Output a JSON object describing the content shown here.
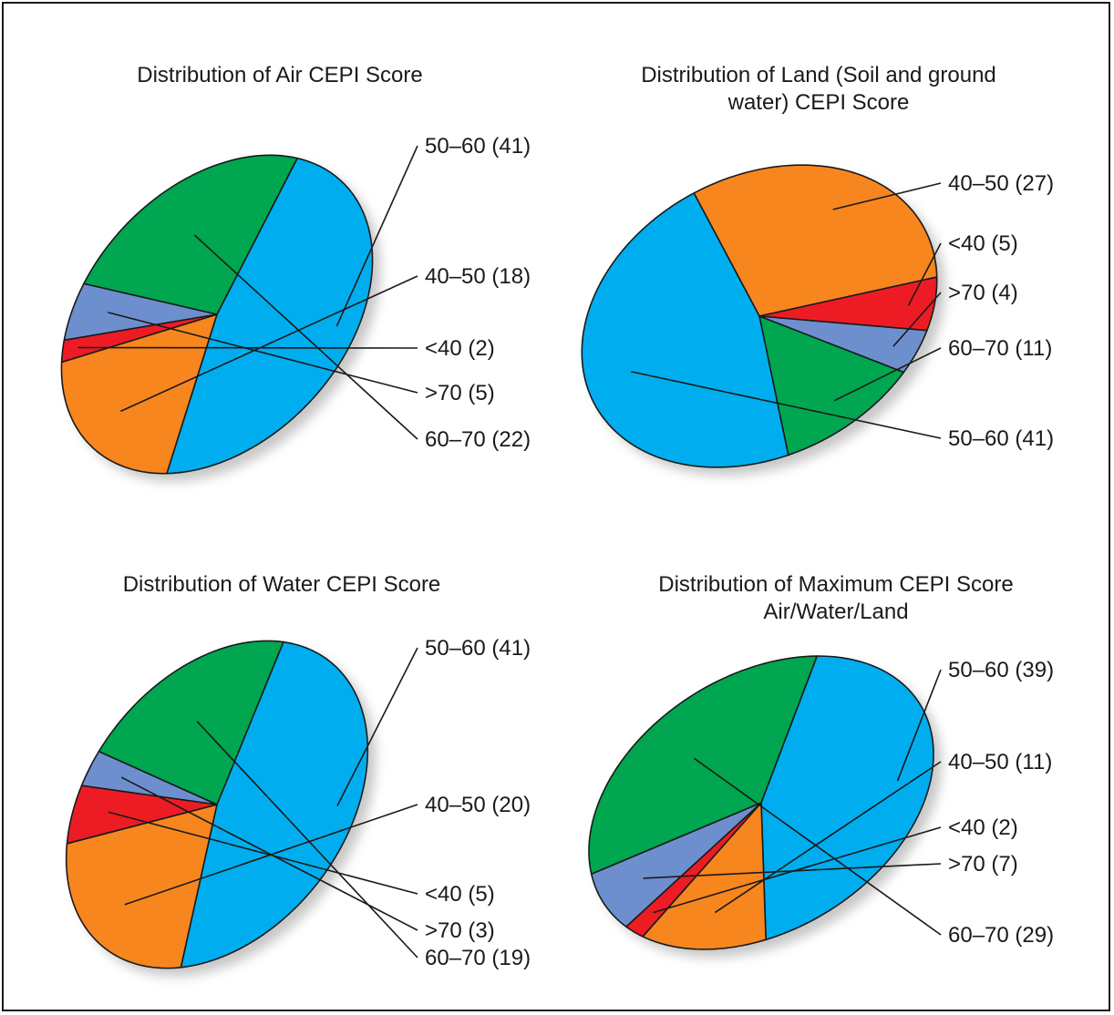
{
  "colors": {
    "50-60": "#00aeef",
    "40-50": "#f7861f",
    "<40": "#ed1c24",
    ">70": "#6e8fce",
    "60-70": "#00a650",
    "outline": "#1a1a1a",
    "shadow": "#9a9a9a"
  },
  "chart_data": [
    {
      "type": "pie",
      "title_lines": [
        "Distribution of Air CEPI Score"
      ],
      "slices": [
        {
          "key": "50-60",
          "label": "50–60 (41)",
          "value": 41
        },
        {
          "key": "40-50",
          "label": "40–50 (18)",
          "value": 18
        },
        {
          "key": "<40",
          "label": "<40 (2)",
          "value": 2
        },
        {
          "key": ">70",
          "label": ">70 (5)",
          "value": 5
        },
        {
          "key": "60-70",
          "label": "60–70 (22)",
          "value": 22
        }
      ]
    },
    {
      "type": "pie",
      "title_lines": [
        "Distribution of Land (Soil and ground",
        "water) CEPI Score"
      ],
      "slices": [
        {
          "key": "40-50",
          "label": "40–50 (27)",
          "value": 27
        },
        {
          "key": "<40",
          "label": "<40 (5)",
          "value": 5
        },
        {
          "key": ">70",
          "label": ">70 (4)",
          "value": 4
        },
        {
          "key": "60-70",
          "label": "60–70 (11)",
          "value": 11
        },
        {
          "key": "50-60",
          "label": "50–60 (41)",
          "value": 41
        }
      ]
    },
    {
      "type": "pie",
      "title_lines": [
        "Distribution of Water CEPI Score"
      ],
      "slices": [
        {
          "key": "50-60",
          "label": "50–60 (41)",
          "value": 41
        },
        {
          "key": "40-50",
          "label": "40–50 (20)",
          "value": 20
        },
        {
          "key": "<40",
          "label": "<40 (5)",
          "value": 5
        },
        {
          "key": ">70",
          "label": ">70 (3)",
          "value": 3
        },
        {
          "key": "60-70",
          "label": "60–70 (19)",
          "value": 19
        }
      ]
    },
    {
      "type": "pie",
      "title_lines": [
        "Distribution of Maximum CEPI Score",
        "Air/Water/Land"
      ],
      "slices": [
        {
          "key": "50-60",
          "label": "50–60 (39)",
          "value": 39
        },
        {
          "key": "40-50",
          "label": "40–50 (11)",
          "value": 11
        },
        {
          "key": "<40",
          "label": "<40 (2)",
          "value": 2
        },
        {
          "key": ">70",
          "label": ">70 (7)",
          "value": 7
        },
        {
          "key": "60-70",
          "label": "60–70 (29)",
          "value": 29
        }
      ]
    }
  ]
}
